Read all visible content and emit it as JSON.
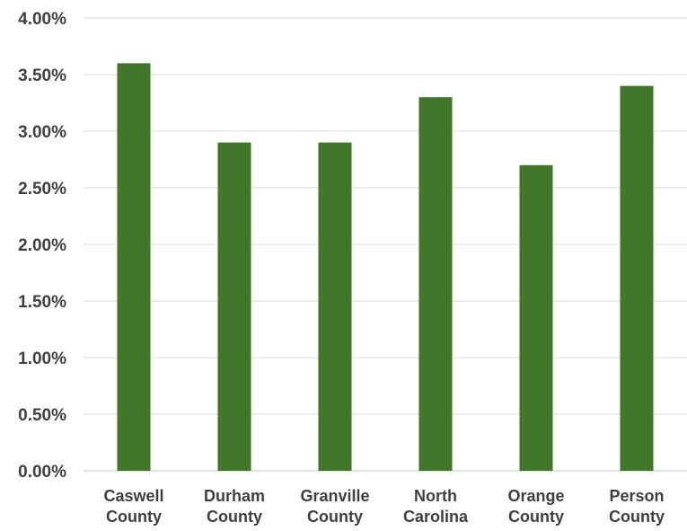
{
  "chart_data": {
    "type": "bar",
    "categories": [
      [
        "Caswell",
        "County"
      ],
      [
        "Durham",
        "County"
      ],
      [
        "Granville",
        "County"
      ],
      [
        "North",
        "Carolina"
      ],
      [
        "Orange",
        "County"
      ],
      [
        "Person",
        "County"
      ]
    ],
    "values": [
      3.6,
      2.9,
      2.9,
      3.3,
      2.7,
      3.4
    ],
    "y_tick_labels": [
      "0.00%",
      "0.50%",
      "1.00%",
      "1.50%",
      "2.00%",
      "2.50%",
      "3.00%",
      "3.50%",
      "4.00%"
    ],
    "ylim": [
      0,
      4
    ],
    "y_unit": "%",
    "grid": true,
    "legend": "none",
    "bar_color": "#41772a",
    "grid_color": "#d9d9d9",
    "text_color": "#3f3f3f",
    "title": "",
    "xlabel": "",
    "ylabel": ""
  }
}
